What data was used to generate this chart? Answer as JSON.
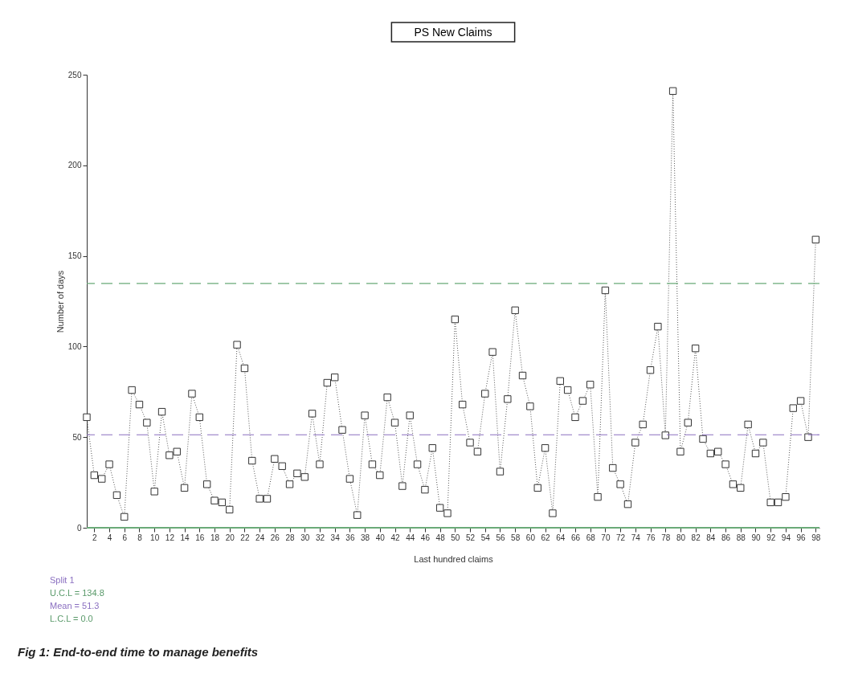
{
  "chart_data": {
    "type": "line",
    "title": "PS New Claims",
    "xlabel": "Last hundred claims",
    "ylabel": "Number of days",
    "x": [
      1,
      2,
      3,
      4,
      5,
      6,
      7,
      8,
      9,
      10,
      11,
      12,
      13,
      14,
      15,
      16,
      17,
      18,
      19,
      20,
      21,
      22,
      23,
      24,
      25,
      26,
      27,
      28,
      29,
      30,
      31,
      32,
      33,
      34,
      35,
      36,
      37,
      38,
      39,
      40,
      41,
      42,
      43,
      44,
      45,
      46,
      47,
      48,
      49,
      50,
      51,
      52,
      53,
      54,
      55,
      56,
      57,
      58,
      59,
      60,
      61,
      62,
      63,
      64,
      65,
      66,
      67,
      68,
      69,
      70,
      71,
      72,
      73,
      74,
      75,
      76,
      77,
      78,
      79,
      80,
      81,
      82,
      83,
      84,
      85,
      86,
      87,
      88,
      89,
      90,
      91,
      92,
      93,
      94,
      95,
      96,
      97,
      98
    ],
    "series": [
      {
        "color": "#555555",
        "values": [
          61,
          29,
          27,
          35,
          18,
          6,
          76,
          68,
          58,
          20,
          64,
          40,
          42,
          22,
          74,
          61,
          24,
          15,
          14,
          10,
          101,
          88,
          37,
          16,
          16,
          38,
          34,
          24,
          30,
          28,
          63,
          35,
          80,
          83,
          54,
          27,
          7,
          62,
          35,
          29,
          72,
          58,
          23,
          62,
          35,
          21,
          44,
          11,
          8,
          115,
          68,
          47,
          42,
          74,
          97,
          31,
          71,
          120,
          84,
          67,
          22,
          44,
          8,
          81,
          76,
          61,
          70,
          79,
          17,
          131,
          33,
          24,
          13,
          47,
          57,
          87,
          111,
          51,
          241,
          42,
          58,
          99,
          49,
          41,
          42,
          35,
          24,
          22,
          57,
          41,
          47,
          14,
          14,
          17,
          66,
          70,
          50,
          159
        ]
      }
    ],
    "xlim": [
      1,
      98.5
    ],
    "xticks": [
      2,
      4,
      6,
      8,
      10,
      12,
      14,
      16,
      18,
      20,
      22,
      24,
      26,
      28,
      30,
      32,
      34,
      36,
      38,
      40,
      42,
      44,
      46,
      48,
      50,
      52,
      54,
      56,
      58,
      60,
      62,
      64,
      66,
      68,
      70,
      72,
      74,
      76,
      78,
      80,
      82,
      84,
      86,
      88,
      90,
      92,
      94,
      96,
      98
    ],
    "ylim": [
      0,
      250
    ],
    "yticks": [
      0,
      50,
      100,
      150,
      200,
      250
    ],
    "marker": "square",
    "line_style": "dotted",
    "grid": false,
    "ref_lines": [
      {
        "axis": "y",
        "value": 134.8,
        "color": "#6aaa78",
        "line_style": "dashed"
      },
      {
        "axis": "y",
        "value": 51.3,
        "color": "#8a6fc0",
        "line_style": "dashed"
      },
      {
        "axis": "y",
        "value": 0,
        "color": "#6aaa78",
        "line_style": "solid"
      }
    ],
    "annotations": [
      "Split 1",
      "U.C.L = 134.8",
      "Mean = 51.3",
      "L.C.L = 0.0",
      "Fig 1: End-to-end time to manage benefits"
    ]
  }
}
